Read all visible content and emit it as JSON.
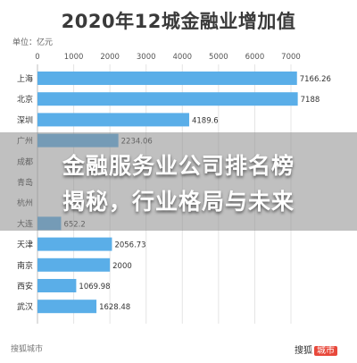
{
  "chart_data": {
    "type": "bar",
    "orientation": "horizontal",
    "title": "2020年12城金融业增加值",
    "unit_label": "单位：亿元",
    "xlim": [
      0,
      7000
    ],
    "xticks": [
      "0",
      "1000",
      "2000",
      "3000",
      "4000",
      "5000",
      "6000",
      "7000"
    ],
    "categories": [
      "上海",
      "北京",
      "深圳",
      "广州",
      "成都",
      "青岛",
      "杭州",
      "大连",
      "天津",
      "南京",
      "西安",
      "武汉"
    ],
    "values": [
      7166.26,
      7188,
      4189.6,
      2234.06,
      null,
      null,
      null,
      652.2,
      2056.73,
      2000,
      1069.98,
      1628.48
    ],
    "value_labels": [
      "7166.26",
      "7188",
      "4189.6",
      "2234.06",
      "",
      "",
      "",
      "652.2",
      "2056.73",
      "2000",
      "1069.98",
      "1628.48"
    ],
    "bar_color": "#5aaee8",
    "grid": true
  },
  "headline": {
    "line1": "金融服务业公司排名榜",
    "line2": "揭秘，行业格局与未来"
  },
  "footer": {
    "source": "搜狐城市",
    "logo_text": "搜狐",
    "logo_accent": "城市"
  }
}
